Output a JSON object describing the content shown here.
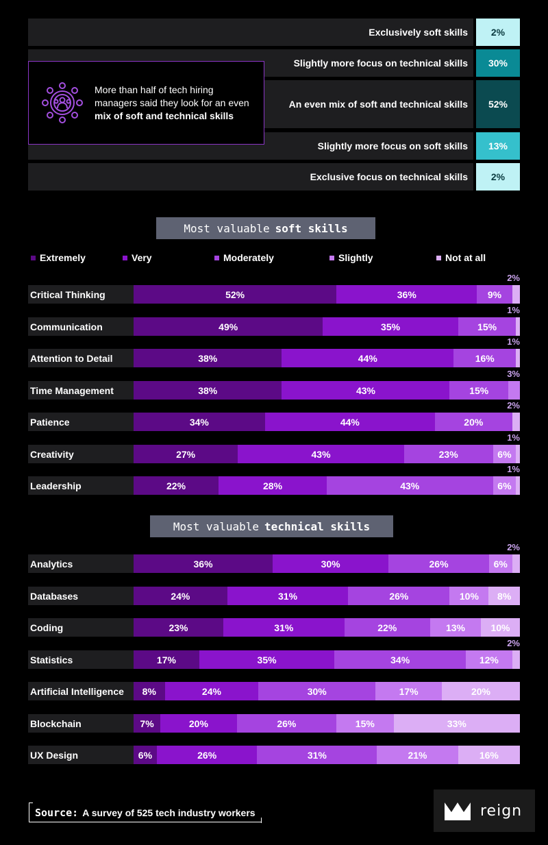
{
  "colors": {
    "extremely": "#5c0a86",
    "very": "#8a14cc",
    "moderately": "#a544e0",
    "slightly": "#c479f0",
    "not_at_all": "#dcaef5",
    "mix_2": "#bff2f5",
    "mix_30": "#0a8a95",
    "mix_52": "#0b4a50",
    "mix_13": "#35c0cc"
  },
  "callout": {
    "line1": "More than half of tech hiring",
    "line2": "managers said they look for an even",
    "line3": "mix of soft and technical skills",
    "icon": "team-gear-icon"
  },
  "mix": [
    {
      "label": "Exclusively soft skills",
      "value": "2%"
    },
    {
      "label": "Slightly more focus on technical skills",
      "value": "30%"
    },
    {
      "label": "An even mix of soft and technical skills",
      "value": "52%"
    },
    {
      "label": "Slightly more focus on soft skills",
      "value": "13%"
    },
    {
      "label": "Exclusive focus on technical skills",
      "value": "2%"
    }
  ],
  "soft_title": {
    "prefix": "Most valuable",
    "bold": "soft skills"
  },
  "tech_title": {
    "prefix": "Most valuable",
    "bold": "technical skills"
  },
  "legend": [
    "Extremely",
    "Very",
    "Moderately",
    "Slightly",
    "Not at all"
  ],
  "chart_data": [
    {
      "type": "bar",
      "stacked": true,
      "orientation": "horizontal",
      "title": "Most valuable soft skills",
      "series_names": [
        "Extremely",
        "Very",
        "Moderately",
        "Slightly",
        "Not at all"
      ],
      "categories": [
        "Critical Thinking",
        "Communication",
        "Attention to Detail",
        "Time Management",
        "Patience",
        "Creativity",
        "Leadership"
      ],
      "values": [
        [
          52,
          36,
          9,
          0,
          2
        ],
        [
          49,
          35,
          15,
          0,
          1
        ],
        [
          38,
          44,
          16,
          0,
          1
        ],
        [
          38,
          43,
          15,
          3,
          0
        ],
        [
          34,
          44,
          20,
          0,
          2
        ],
        [
          27,
          43,
          23,
          6,
          1
        ],
        [
          22,
          28,
          43,
          6,
          1
        ]
      ],
      "legend_position": "top"
    },
    {
      "type": "bar",
      "stacked": true,
      "orientation": "horizontal",
      "title": "Most valuable technical skills",
      "series_names": [
        "Extremely",
        "Very",
        "Moderately",
        "Slightly",
        "Not at all"
      ],
      "categories": [
        "Analytics",
        "Databases",
        "Coding",
        "Statistics",
        "Artificial Intelligence",
        "Blockchain",
        "UX Design"
      ],
      "values": [
        [
          36,
          30,
          26,
          6,
          2
        ],
        [
          24,
          31,
          26,
          10,
          8
        ],
        [
          23,
          31,
          22,
          13,
          10
        ],
        [
          17,
          35,
          34,
          12,
          2
        ],
        [
          8,
          24,
          30,
          17,
          20
        ],
        [
          7,
          20,
          26,
          15,
          33
        ],
        [
          6,
          26,
          31,
          21,
          16
        ]
      ]
    }
  ],
  "source": {
    "label": "Source:",
    "text": "A survey of 525 tech industry workers"
  },
  "logo": {
    "text": "reign",
    "icon": "crown-icon"
  }
}
